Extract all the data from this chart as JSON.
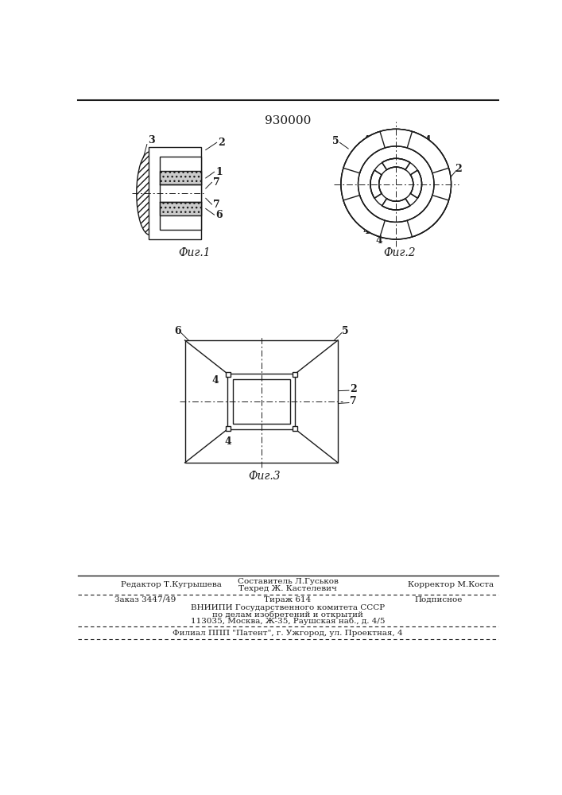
{
  "title": "930000",
  "fig1_caption": "Фиг.1",
  "fig2_caption": "Фиг.2",
  "fig3_caption": "Фиг.3",
  "footer_line1_left": "Редактор Т.Кугрышева",
  "footer_line1_center1": "Составитель Л.Гуськов",
  "footer_line1_center2": "Техред Ж. Кастелевич",
  "footer_line1_right": "Корректор М.Коста",
  "footer_line2_left": "Заказ 3447/49",
  "footer_line2_center": "Тираж 614",
  "footer_line2_right": "Подписное",
  "footer_line3": "ВНИИПИ Государственного комитета СССР",
  "footer_line4": "по делам изобретений и открытий",
  "footer_line5": "113035, Москва, Ж-35, Раушская наб., д. 4/5",
  "footer_line6": "Филиал ППП \"Патент\", г. Ужгород, ул. Проектная, 4",
  "bg_color": "#ffffff",
  "line_color": "#1a1a1a"
}
